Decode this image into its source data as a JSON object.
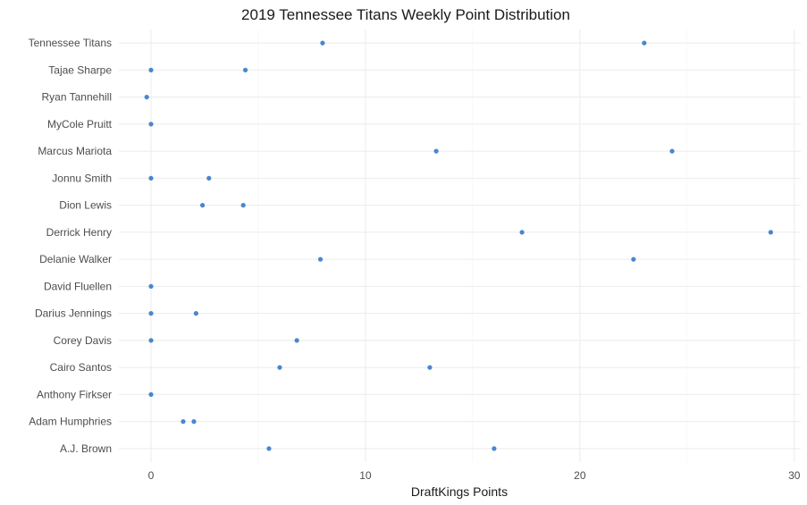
{
  "chart_data": {
    "type": "scatter",
    "title": "2019 Tennessee Titans Weekly Point Distribution",
    "xlabel": "DraftKings Points",
    "ylabel": "",
    "xlim": [
      -1.5,
      30.3
    ],
    "xticks": [
      0,
      10,
      20,
      30
    ],
    "grid": true,
    "point_color": "#4a86cf",
    "categories": [
      "Tennessee Titans",
      "Tajae Sharpe",
      "Ryan Tannehill",
      "MyCole Pruitt",
      "Marcus Mariota",
      "Jonnu Smith",
      "Dion Lewis",
      "Derrick Henry",
      "Delanie Walker",
      "David Fluellen",
      "Darius Jennings",
      "Corey Davis",
      "Cairo Santos",
      "Anthony Firkser",
      "Adam Humphries",
      "A.J. Brown"
    ],
    "points": [
      {
        "category": "Tennessee Titans",
        "values": [
          8.0,
          23.0
        ]
      },
      {
        "category": "Tajae Sharpe",
        "values": [
          0.0,
          4.4
        ]
      },
      {
        "category": "Ryan Tannehill",
        "values": [
          -0.2
        ]
      },
      {
        "category": "MyCole Pruitt",
        "values": [
          0.0
        ]
      },
      {
        "category": "Marcus Mariota",
        "values": [
          13.3,
          24.3
        ]
      },
      {
        "category": "Jonnu Smith",
        "values": [
          0.0,
          2.7
        ]
      },
      {
        "category": "Dion Lewis",
        "values": [
          2.4,
          4.3
        ]
      },
      {
        "category": "Derrick Henry",
        "values": [
          17.3,
          28.9
        ]
      },
      {
        "category": "Delanie Walker",
        "values": [
          7.9,
          22.5
        ]
      },
      {
        "category": "David Fluellen",
        "values": [
          0.0
        ]
      },
      {
        "category": "Darius Jennings",
        "values": [
          0.0,
          2.1
        ]
      },
      {
        "category": "Corey Davis",
        "values": [
          0.0,
          6.8
        ]
      },
      {
        "category": "Cairo Santos",
        "values": [
          6.0,
          13.0
        ]
      },
      {
        "category": "Anthony Firkser",
        "values": [
          0.0
        ]
      },
      {
        "category": "Adam Humphries",
        "values": [
          1.5,
          2.0
        ]
      },
      {
        "category": "A.J. Brown",
        "values": [
          5.5,
          16.0
        ]
      }
    ]
  }
}
